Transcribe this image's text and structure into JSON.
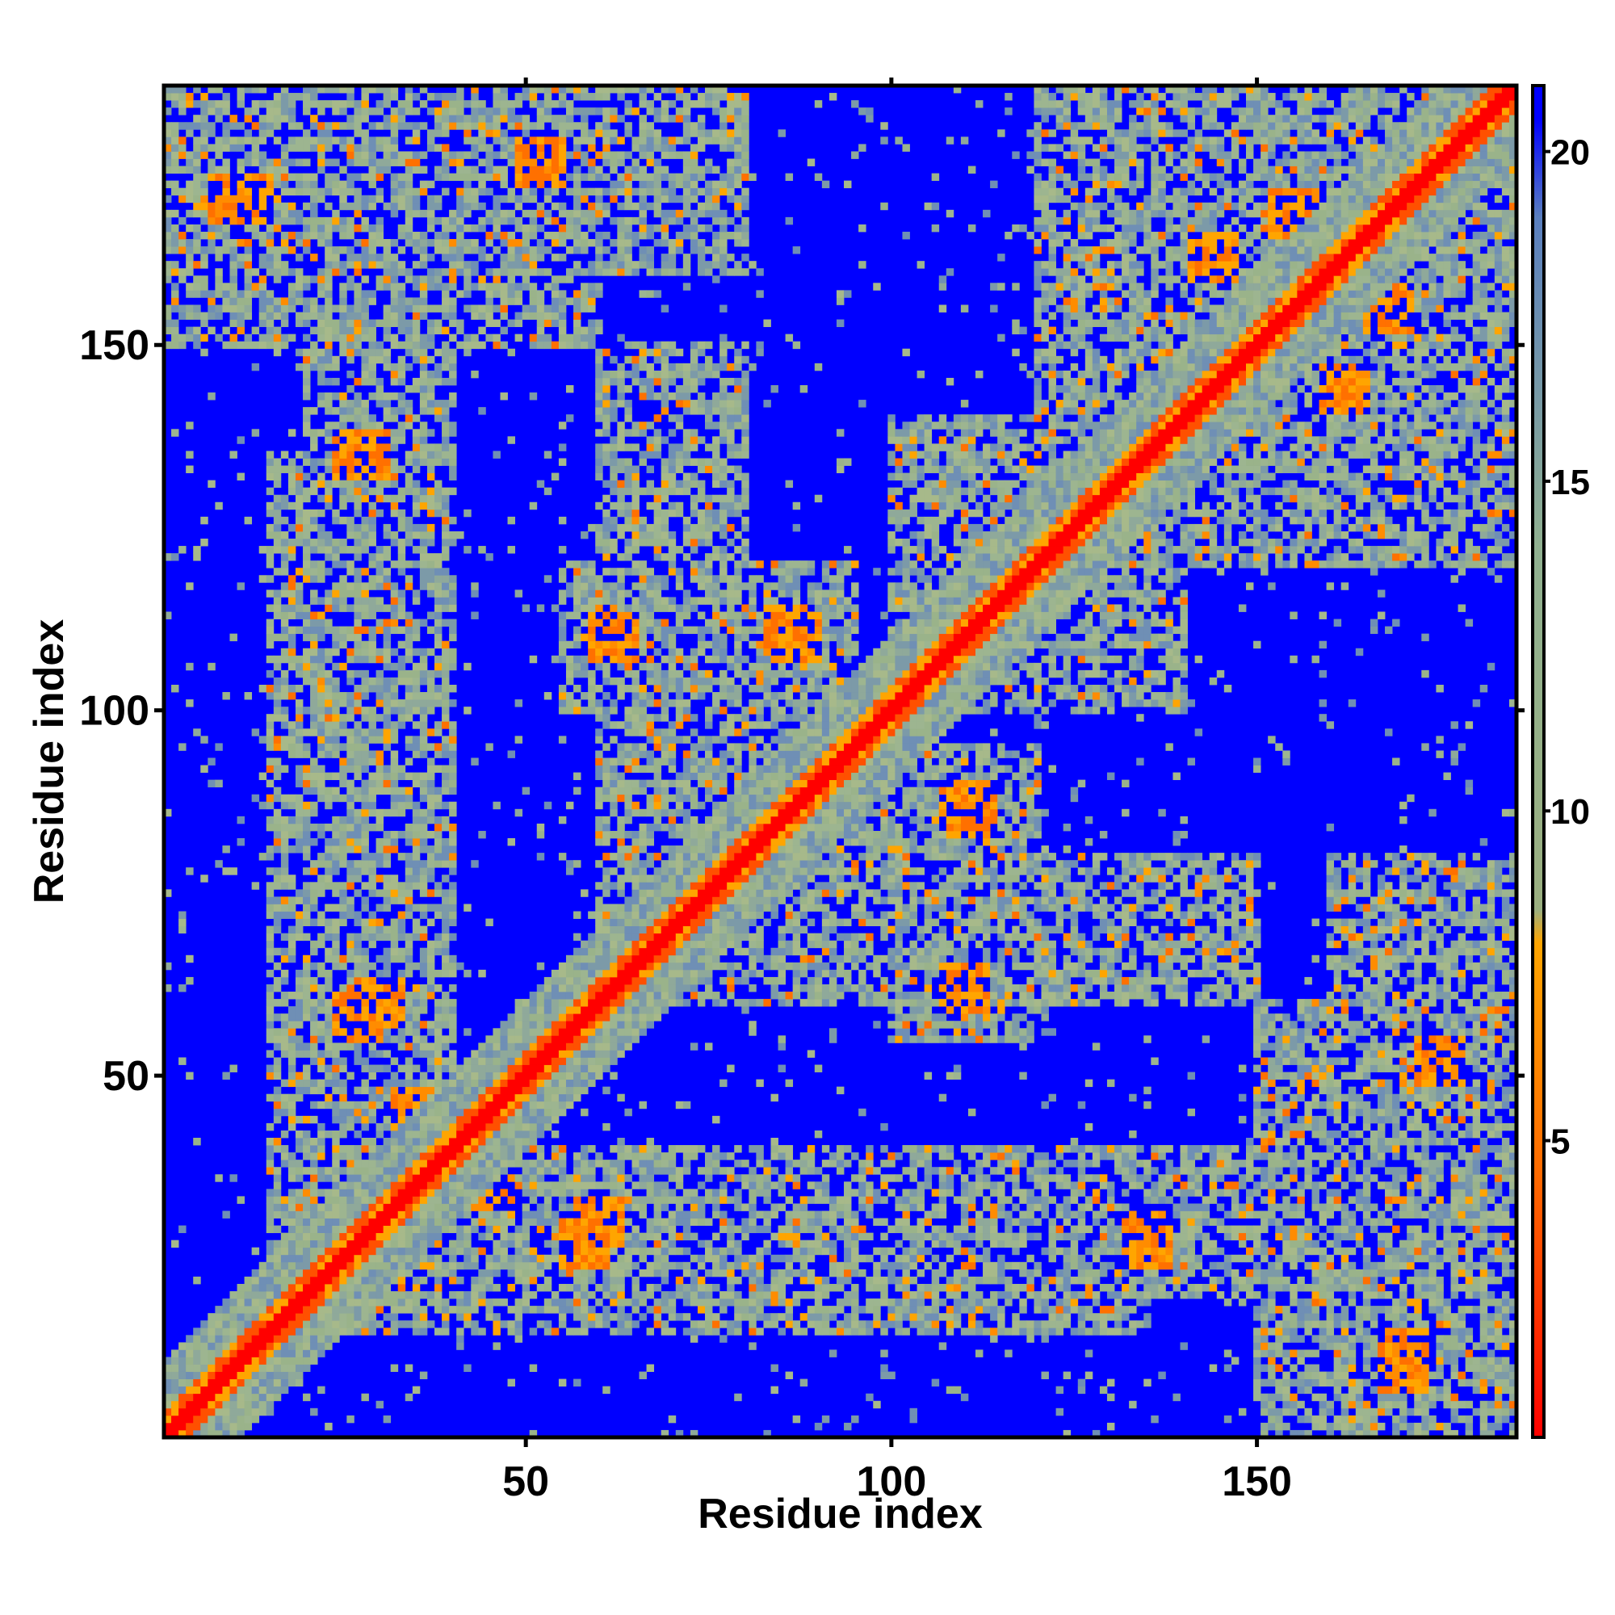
{
  "chart_data": {
    "type": "heatmap",
    "title": "",
    "xlabel": "Residue index",
    "ylabel": "Residue index",
    "xlim": [
      1,
      185
    ],
    "ylim": [
      1,
      185
    ],
    "x_ticks": [
      50,
      100,
      150
    ],
    "y_ticks": [
      50,
      100,
      150
    ],
    "colorbar": {
      "ticks": [
        5,
        10,
        15,
        20
      ],
      "range": [
        0.5,
        21
      ],
      "stops": [
        {
          "value": 0.5,
          "color": "#ff0000"
        },
        {
          "value": 4.5,
          "color": "#ff6a00"
        },
        {
          "value": 8.0,
          "color": "#ffa500"
        },
        {
          "value": 8.5,
          "color": "#9aaf80"
        },
        {
          "value": 14.0,
          "color": "#90b090"
        },
        {
          "value": 19.0,
          "color": "#5a7fbf"
        },
        {
          "value": 20.5,
          "color": "#0000ff"
        },
        {
          "value": 21,
          "color": "#0000ff"
        }
      ]
    },
    "colors": {
      "background_far": "#0000ff",
      "contact_mid": "#9ab38a",
      "contact_near": "#ffa500",
      "diagonal": "#ff0000"
    },
    "contact_blocks": [
      {
        "x": [
          1,
          60
        ],
        "y": [
          150,
          185
        ]
      },
      {
        "x": [
          150,
          185
        ],
        "y": [
          1,
          60
        ]
      },
      {
        "x": [
          15,
          40
        ],
        "y": [
          25,
          135
        ]
      },
      {
        "x": [
          25,
          135
        ],
        "y": [
          15,
          40
        ]
      },
      {
        "x": [
          60,
          100
        ],
        "y": [
          60,
          100
        ]
      },
      {
        "x": [
          100,
          140
        ],
        "y": [
          100,
          140
        ]
      },
      {
        "x": [
          130,
          185
        ],
        "y": [
          120,
          185
        ]
      },
      {
        "x": [
          120,
          185
        ],
        "y": [
          130,
          185
        ]
      },
      {
        "x": [
          55,
          95
        ],
        "y": [
          100,
          120
        ]
      },
      {
        "x": [
          100,
          120
        ],
        "y": [
          55,
          95
        ]
      },
      {
        "x": [
          105,
          150
        ],
        "y": [
          60,
          80
        ]
      },
      {
        "x": [
          60,
          80
        ],
        "y": [
          105,
          150
        ]
      },
      {
        "x": [
          160,
          185
        ],
        "y": [
          20,
          80
        ]
      },
      {
        "x": [
          20,
          80
        ],
        "y": [
          160,
          185
        ]
      },
      {
        "x": [
          120,
          150
        ],
        "y": [
          20,
          40
        ]
      },
      {
        "x": [
          20,
          40
        ],
        "y": [
          120,
          150
        ]
      }
    ],
    "near_contacts": [
      {
        "x": 28,
        "y": 135
      },
      {
        "x": 135,
        "y": 28
      },
      {
        "x": 30,
        "y": 60
      },
      {
        "x": 60,
        "y": 30
      },
      {
        "x": 58,
        "y": 27
      },
      {
        "x": 27,
        "y": 58
      },
      {
        "x": 62,
        "y": 110
      },
      {
        "x": 110,
        "y": 62
      },
      {
        "x": 86,
        "y": 111
      },
      {
        "x": 111,
        "y": 86
      },
      {
        "x": 110,
        "y": 87
      },
      {
        "x": 87,
        "y": 110
      },
      {
        "x": 135,
        "y": 27
      },
      {
        "x": 27,
        "y": 135
      },
      {
        "x": 10,
        "y": 170
      },
      {
        "x": 170,
        "y": 10
      },
      {
        "x": 140,
        "y": 137
      },
      {
        "x": 137,
        "y": 140
      },
      {
        "x": 144,
        "y": 162
      },
      {
        "x": 162,
        "y": 144
      },
      {
        "x": 168,
        "y": 155
      },
      {
        "x": 155,
        "y": 168
      },
      {
        "x": 170,
        "y": 12
      },
      {
        "x": 12,
        "y": 170
      },
      {
        "x": 45,
        "y": 35
      },
      {
        "x": 35,
        "y": 45
      },
      {
        "x": 52,
        "y": 175
      },
      {
        "x": 175,
        "y": 52
      }
    ]
  }
}
